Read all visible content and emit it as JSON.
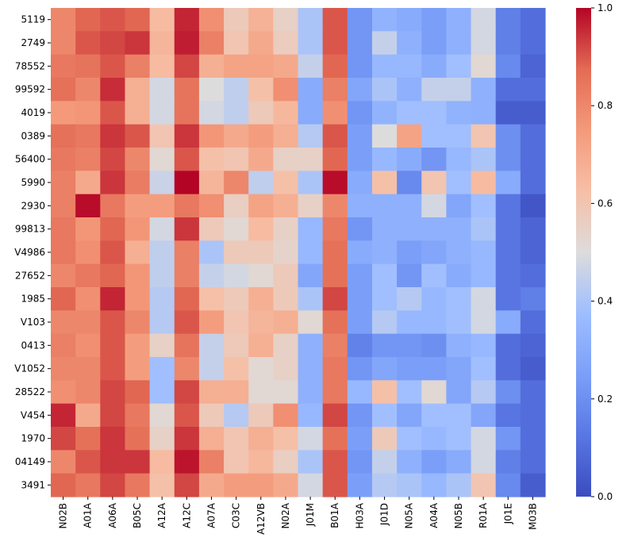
{
  "chart_data": {
    "type": "heatmap",
    "title": "",
    "xlabel": "",
    "ylabel": "",
    "colormap": "coolwarm",
    "vmin": 0.0,
    "vmax": 1.0,
    "colorbar_ticks": [
      "0.0",
      "0.2",
      "0.4",
      "0.6",
      "0.8",
      "1.0"
    ],
    "columns": [
      "N02B",
      "A01A",
      "A06A",
      "B05C",
      "A12A",
      "A12C",
      "A07A",
      "C03C",
      "A12VB",
      "N02A",
      "J01M",
      "B01A",
      "H03A",
      "J01D",
      "N05A",
      "A04A",
      "N05B",
      "R01A",
      "J01E",
      "M03B"
    ],
    "rows": [
      "5119",
      "2749",
      "78552",
      "99592",
      "4019",
      "0389",
      "56400",
      "5990",
      "2930",
      "99813",
      "V4986",
      "27652",
      "1985",
      "V103",
      "0413",
      "V1052",
      "28522",
      "V454",
      "1970",
      "04149",
      "3491"
    ],
    "values": [
      [
        0.8,
        0.88,
        0.9,
        0.88,
        0.64,
        0.96,
        0.78,
        0.58,
        0.67,
        0.55,
        0.4,
        0.9,
        0.22,
        0.33,
        0.3,
        0.25,
        0.32,
        0.48,
        0.15,
        0.1
      ],
      [
        0.8,
        0.9,
        0.92,
        0.94,
        0.66,
        0.97,
        0.82,
        0.6,
        0.7,
        0.57,
        0.4,
        0.9,
        0.22,
        0.45,
        0.32,
        0.25,
        0.32,
        0.48,
        0.15,
        0.1
      ],
      [
        0.84,
        0.85,
        0.9,
        0.82,
        0.64,
        0.92,
        0.68,
        0.72,
        0.72,
        0.7,
        0.45,
        0.88,
        0.22,
        0.35,
        0.35,
        0.3,
        0.38,
        0.52,
        0.18,
        0.07
      ],
      [
        0.86,
        0.8,
        0.95,
        0.68,
        0.48,
        0.85,
        0.5,
        0.44,
        0.62,
        0.78,
        0.3,
        0.82,
        0.28,
        0.4,
        0.32,
        0.45,
        0.45,
        0.32,
        0.1,
        0.1
      ],
      [
        0.75,
        0.76,
        0.9,
        0.68,
        0.48,
        0.85,
        0.48,
        0.44,
        0.58,
        0.65,
        0.3,
        0.78,
        0.22,
        0.33,
        0.38,
        0.38,
        0.33,
        0.32,
        0.05,
        0.05
      ],
      [
        0.86,
        0.84,
        0.94,
        0.9,
        0.6,
        0.94,
        0.76,
        0.7,
        0.74,
        0.68,
        0.42,
        0.9,
        0.25,
        0.5,
        0.72,
        0.38,
        0.38,
        0.6,
        0.2,
        0.1
      ],
      [
        0.84,
        0.82,
        0.92,
        0.8,
        0.52,
        0.9,
        0.62,
        0.6,
        0.7,
        0.55,
        0.55,
        0.88,
        0.25,
        0.35,
        0.3,
        0.22,
        0.35,
        0.4,
        0.2,
        0.1
      ],
      [
        0.82,
        0.7,
        0.94,
        0.83,
        0.46,
        1.0,
        0.66,
        0.8,
        0.44,
        0.62,
        0.4,
        0.99,
        0.3,
        0.62,
        0.18,
        0.6,
        0.38,
        0.64,
        0.3,
        0.1
      ],
      [
        0.82,
        0.99,
        0.84,
        0.74,
        0.74,
        0.84,
        0.78,
        0.56,
        0.72,
        0.68,
        0.55,
        0.8,
        0.32,
        0.32,
        0.32,
        0.48,
        0.28,
        0.38,
        0.12,
        0.03
      ],
      [
        0.84,
        0.76,
        0.88,
        0.76,
        0.48,
        0.94,
        0.58,
        0.52,
        0.64,
        0.55,
        0.35,
        0.84,
        0.22,
        0.32,
        0.32,
        0.32,
        0.32,
        0.4,
        0.12,
        0.07
      ],
      [
        0.84,
        0.78,
        0.9,
        0.68,
        0.44,
        0.82,
        0.4,
        0.58,
        0.58,
        0.54,
        0.35,
        0.86,
        0.3,
        0.32,
        0.25,
        0.28,
        0.32,
        0.35,
        0.12,
        0.07
      ],
      [
        0.8,
        0.84,
        0.88,
        0.76,
        0.44,
        0.82,
        0.45,
        0.48,
        0.52,
        0.58,
        0.28,
        0.86,
        0.25,
        0.38,
        0.22,
        0.38,
        0.3,
        0.35,
        0.12,
        0.1
      ],
      [
        0.88,
        0.78,
        0.96,
        0.76,
        0.42,
        0.88,
        0.62,
        0.58,
        0.68,
        0.58,
        0.4,
        0.92,
        0.25,
        0.38,
        0.42,
        0.35,
        0.38,
        0.48,
        0.12,
        0.15
      ],
      [
        0.8,
        0.8,
        0.9,
        0.8,
        0.42,
        0.9,
        0.74,
        0.6,
        0.66,
        0.68,
        0.52,
        0.86,
        0.25,
        0.42,
        0.35,
        0.35,
        0.38,
        0.48,
        0.3,
        0.1
      ],
      [
        0.82,
        0.78,
        0.9,
        0.74,
        0.55,
        0.85,
        0.45,
        0.58,
        0.68,
        0.55,
        0.32,
        0.82,
        0.16,
        0.22,
        0.22,
        0.2,
        0.32,
        0.35,
        0.1,
        0.07
      ],
      [
        0.8,
        0.8,
        0.9,
        0.74,
        0.38,
        0.8,
        0.45,
        0.62,
        0.52,
        0.55,
        0.32,
        0.84,
        0.22,
        0.28,
        0.25,
        0.25,
        0.28,
        0.38,
        0.1,
        0.05
      ],
      [
        0.78,
        0.8,
        0.92,
        0.88,
        0.38,
        0.92,
        0.68,
        0.68,
        0.52,
        0.52,
        0.32,
        0.84,
        0.35,
        0.62,
        0.38,
        0.52,
        0.28,
        0.42,
        0.2,
        0.1
      ],
      [
        0.96,
        0.7,
        0.92,
        0.84,
        0.52,
        0.9,
        0.58,
        0.42,
        0.58,
        0.78,
        0.35,
        0.92,
        0.22,
        0.38,
        0.28,
        0.38,
        0.38,
        0.28,
        0.12,
        0.1
      ],
      [
        0.92,
        0.86,
        0.94,
        0.86,
        0.55,
        0.94,
        0.68,
        0.6,
        0.68,
        0.62,
        0.48,
        0.86,
        0.25,
        0.58,
        0.38,
        0.35,
        0.38,
        0.48,
        0.22,
        0.1
      ],
      [
        0.8,
        0.9,
        0.94,
        0.94,
        0.64,
        0.98,
        0.82,
        0.6,
        0.65,
        0.56,
        0.4,
        0.9,
        0.22,
        0.45,
        0.32,
        0.25,
        0.3,
        0.48,
        0.15,
        0.1
      ],
      [
        0.88,
        0.84,
        0.92,
        0.84,
        0.62,
        0.92,
        0.7,
        0.74,
        0.74,
        0.7,
        0.48,
        0.9,
        0.25,
        0.42,
        0.4,
        0.35,
        0.4,
        0.6,
        0.18,
        0.05
      ]
    ]
  }
}
